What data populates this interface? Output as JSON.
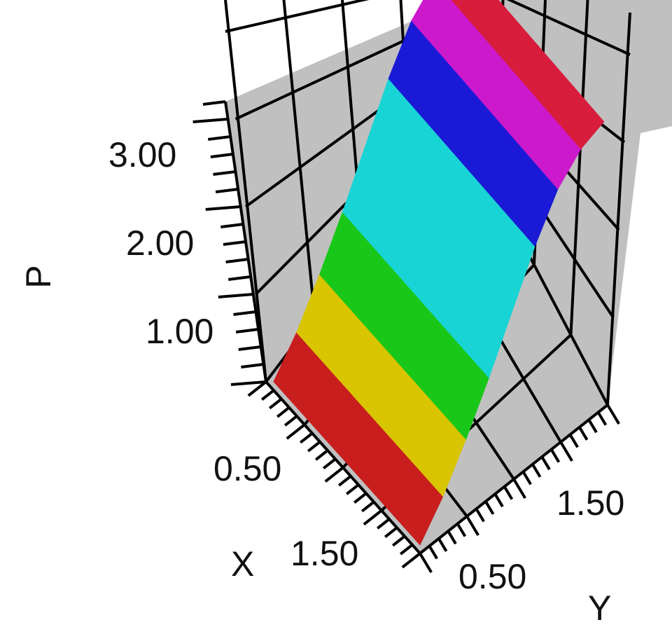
{
  "chart_data": {
    "type": "surface3d",
    "axes": {
      "x": {
        "label": "X",
        "ticks": [
          "0.50",
          "1.50"
        ],
        "range": [
          0,
          2
        ]
      },
      "y": {
        "label": "Y",
        "ticks": [
          "0.50",
          "1.50"
        ],
        "range": [
          0,
          2
        ]
      },
      "z": {
        "label": "P",
        "ticks": [
          "1.00",
          "2.00",
          "3.00"
        ],
        "range": [
          0,
          3.5
        ]
      }
    },
    "surface": {
      "description_of_values": "P rises from ~0.1 to ~3.3 with increasing Y, nearly flat along X",
      "y": [
        0.0,
        0.25,
        0.5,
        0.75,
        1.0,
        1.25,
        1.5,
        1.75,
        2.0
      ],
      "P_at_y": [
        0.1,
        0.45,
        0.9,
        1.4,
        1.95,
        2.5,
        2.95,
        3.2,
        3.3
      ]
    },
    "colormap": [
      "#c81e1e",
      "#d9c400",
      "#19c719",
      "#19d4d4",
      "#1a1ad6",
      "#cc19cc",
      "#d81c3c"
    ],
    "panel_color": "#c0c0c0",
    "grid": true
  }
}
